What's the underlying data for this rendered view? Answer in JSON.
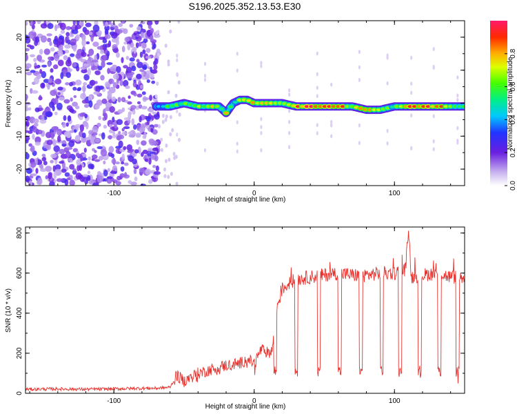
{
  "title": "S196.2025.352.13.53.E30",
  "chart_data": [
    {
      "type": "heatmap",
      "xlabel": "Height of straight line (km)",
      "ylabel": "Frequency (Hz)",
      "xlim": [
        -163,
        150
      ],
      "ylim": [
        -25,
        25
      ],
      "xticks": [
        -100,
        0,
        100
      ],
      "yticks": [
        -20,
        -10,
        0,
        10,
        20
      ],
      "colorbar": {
        "label": "Normalized spectral amplitude",
        "range": [
          0,
          1
        ],
        "ticks": [
          0.0,
          0.2,
          0.4,
          0.6,
          0.8
        ],
        "tick_labels": [
          "0.0",
          "0.2",
          "0.4",
          "0.6",
          "0.8"
        ]
      },
      "noise_region_x": [
        -163,
        -70
      ],
      "track": {
        "x": [
          -70,
          -60,
          -50,
          -40,
          -30,
          -25,
          -20,
          -15,
          -10,
          -5,
          0,
          10,
          20,
          30,
          40,
          50,
          60,
          70,
          80,
          90,
          100,
          110,
          120,
          130,
          140,
          150
        ],
        "freq": [
          -1,
          -1,
          0,
          -1,
          -1,
          -1,
          -3,
          0,
          1,
          1,
          0,
          0,
          0,
          -1,
          -1,
          -1,
          -1,
          -1,
          -2,
          -2,
          -1,
          -1,
          -1,
          -1,
          -1,
          -1
        ],
        "amplitude": [
          0.5,
          0.6,
          0.65,
          0.7,
          0.75,
          0.6,
          0.8,
          0.55,
          0.7,
          0.75,
          0.85,
          0.85,
          0.75,
          0.95,
          0.95,
          1.0,
          0.95,
          0.75,
          0.9,
          0.7,
          0.6,
          0.9,
          0.95,
          0.95,
          0.7,
          0.6
        ]
      }
    },
    {
      "type": "line",
      "xlabel": "Height of straight line (km)",
      "ylabel": "SNR (10 * v/v)",
      "xlim": [
        -163,
        150
      ],
      "ylim": [
        0,
        830
      ],
      "xticks": [
        -100,
        0,
        100
      ],
      "yticks": [
        0,
        200,
        400,
        600,
        800
      ],
      "series": [
        {
          "name": "SNR",
          "color": "#e8312c",
          "x": [
            -163,
            -140,
            -120,
            -100,
            -80,
            -70,
            -60,
            -55,
            -50,
            -40,
            -30,
            -20,
            -10,
            -5,
            0,
            5,
            10,
            13,
            15,
            17,
            20,
            25,
            30,
            40,
            50,
            60,
            70,
            80,
            90,
            100,
            108,
            110,
            112,
            120,
            130,
            140,
            150
          ],
          "y": [
            20,
            22,
            20,
            22,
            25,
            25,
            30,
            90,
            60,
            100,
            120,
            140,
            150,
            170,
            150,
            220,
            200,
            220,
            380,
            450,
            520,
            550,
            570,
            580,
            590,
            600,
            590,
            590,
            600,
            600,
            620,
            830,
            580,
            590,
            600,
            580,
            580
          ]
        }
      ],
      "dropouts_x": [
        15,
        30,
        46,
        61,
        76,
        91,
        104,
        118,
        132,
        145
      ],
      "dropout_level": 110
    }
  ]
}
